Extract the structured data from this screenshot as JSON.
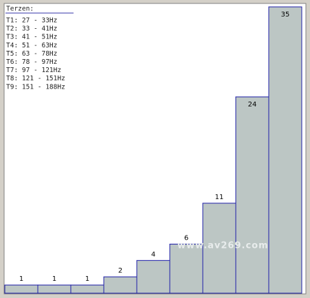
{
  "chart_data": {
    "type": "bar",
    "legend_title": "Terzen:",
    "legend": [
      "T1: 27 - 33Hz",
      "T2: 33 - 41Hz",
      "T3: 41 - 51Hz",
      "T4: 51 - 63Hz",
      "T5: 63 - 78Hz",
      "T6: 78 - 97Hz",
      "T7: 97 - 121Hz",
      "T8: 121 - 151Hz",
      "T9: 151 - 188Hz"
    ],
    "categories": [
      null,
      null,
      null,
      null,
      null,
      null,
      null,
      null,
      null
    ],
    "values": [
      1,
      1,
      1,
      2,
      4,
      6,
      11,
      24,
      35
    ],
    "color": "#bcc6c4",
    "edge_color": "#1c1ca8",
    "ylim": [
      0,
      35
    ],
    "watermark": "www.av269.com"
  }
}
